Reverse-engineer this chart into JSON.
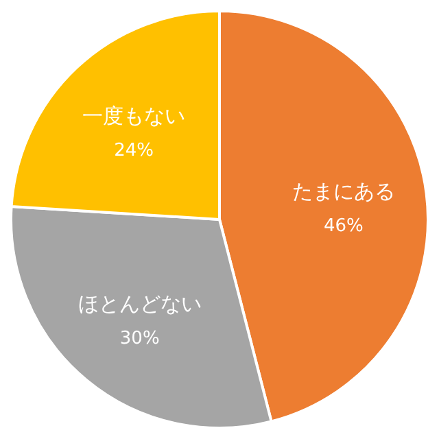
{
  "chart_data": {
    "type": "pie",
    "categories": [
      "たまにある",
      "ほとんどない",
      "一度もない"
    ],
    "values": [
      46,
      30,
      24
    ],
    "colors": [
      "#ed7d31",
      "#a5a5a5",
      "#ffc000"
    ],
    "value_labels": [
      "46%",
      "30%",
      "24%"
    ]
  }
}
